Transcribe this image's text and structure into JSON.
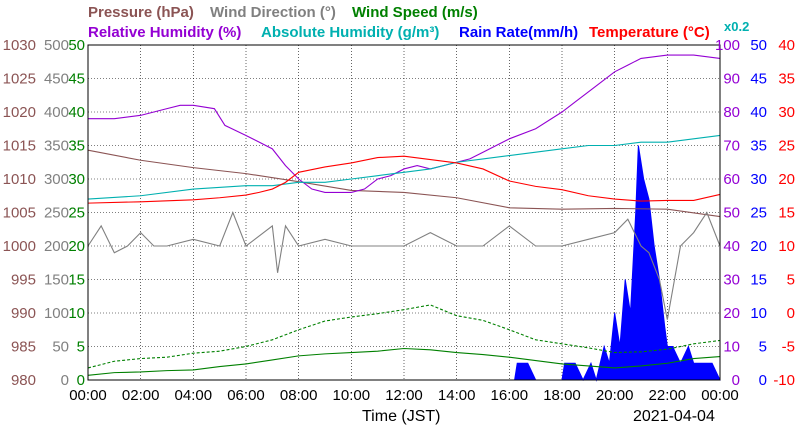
{
  "chart_data": {
    "type": "line",
    "date": "2021-04-04",
    "xlabel": "Time (JST)",
    "x_ticks": [
      "00:00",
      "02:00",
      "04:00",
      "06:00",
      "08:00",
      "10:00",
      "12:00",
      "14:00",
      "16:00",
      "18:00",
      "20:00",
      "22:00",
      "00:00"
    ],
    "grid": true,
    "legend": [
      {
        "label": "Pressure (hPa)",
        "color": "#8b5454"
      },
      {
        "label": "Wind Direction (°)",
        "color": "#808080"
      },
      {
        "label": "Wind Speed (m/s)",
        "color": "#008000"
      },
      {
        "label": "Relative Humidity (%)",
        "color": "#9400d3"
      },
      {
        "label": "Absolute Humidity (g/m³)",
        "color": "#00b0b0"
      },
      {
        "label": "Rain Rate(mm/h)",
        "color": "#0000ff"
      },
      {
        "label": "Temperature (°C)",
        "color": "#ff0000"
      }
    ],
    "abs_humidity_scale_note": "x0.2",
    "axes": {
      "pressure": {
        "color": "#8b5454",
        "ticks": [
          "1030",
          "1025",
          "1020",
          "1015",
          "1010",
          "1005",
          "1000",
          "995",
          "990",
          "985",
          "980"
        ],
        "range": [
          980,
          1030
        ]
      },
      "wind_direction": {
        "color": "#808080",
        "ticks": [
          "500",
          "450",
          "400",
          "350",
          "300",
          "250",
          "200",
          "150",
          "100",
          "50",
          "0"
        ],
        "range": [
          0,
          500
        ]
      },
      "wind_speed": {
        "color": "#008000",
        "ticks": [
          "50",
          "45",
          "40",
          "35",
          "30",
          "25",
          "20",
          "15",
          "10",
          "5",
          "0"
        ],
        "range": [
          0,
          50
        ]
      },
      "humidity": {
        "color": "#9400d3",
        "ticks": [
          "100",
          "90",
          "80",
          "70",
          "60",
          "50",
          "40",
          "30",
          "20",
          "10",
          "0"
        ],
        "range": [
          0,
          100
        ]
      },
      "rain_rate": {
        "color": "#0000ff",
        "ticks": [
          "50",
          "45",
          "40",
          "35",
          "30",
          "25",
          "20",
          "15",
          "10",
          "5",
          "0"
        ],
        "range": [
          0,
          50
        ]
      },
      "temperature": {
        "color": "#ff0000",
        "ticks": [
          "40",
          "35",
          "30",
          "25",
          "20",
          "15",
          "10",
          "5",
          "0",
          "-5",
          "-10"
        ],
        "range": [
          -10,
          40
        ]
      }
    },
    "series": [
      {
        "name": "Pressure (hPa)",
        "color": "#8b5454",
        "axis": "pressure",
        "x": [
          0,
          2,
          4,
          6,
          8,
          10,
          12,
          14,
          16,
          18,
          20,
          22,
          24
        ],
        "y": [
          1014.3,
          1012.8,
          1011.7,
          1010.8,
          1009.6,
          1008.3,
          1008.0,
          1007.2,
          1005.7,
          1005.5,
          1005.6,
          1005.5,
          1004.4
        ]
      },
      {
        "name": "Relative Humidity (%)",
        "color": "#9400d3",
        "axis": "humidity",
        "x": [
          0,
          1,
          2,
          3,
          3.5,
          4,
          4.8,
          5.2,
          6,
          6.5,
          7,
          7.5,
          8,
          8.5,
          9,
          9.5,
          10,
          10.5,
          11,
          11.5,
          12,
          12.5,
          13,
          13.5,
          14,
          14.5,
          15,
          16,
          17,
          18,
          18.5,
          19,
          20,
          20.5,
          21,
          22,
          23,
          24
        ],
        "y": [
          78,
          78,
          79,
          81,
          82,
          82,
          81,
          76,
          73,
          71,
          69,
          64,
          60,
          57,
          56,
          56,
          56,
          57,
          60,
          61,
          63,
          64,
          63,
          64,
          65,
          66,
          68,
          72,
          75,
          80,
          83,
          86,
          92,
          94,
          96,
          97,
          97,
          96
        ]
      },
      {
        "name": "Absolute Humidity (x0.2)",
        "color": "#00b0b0",
        "axis": "humidity",
        "x": [
          0,
          2,
          4,
          6,
          7,
          8,
          9,
          10,
          11,
          12,
          13,
          14,
          15,
          16,
          17,
          18,
          19,
          20,
          21,
          22,
          23,
          24
        ],
        "y": [
          54,
          55,
          57,
          58,
          58,
          59,
          59,
          60,
          61,
          62,
          63,
          65,
          66,
          67,
          68,
          69,
          70,
          70,
          71,
          71,
          72,
          73
        ]
      },
      {
        "name": "Temperature (°C)",
        "color": "#ff0000",
        "axis": "temperature",
        "x": [
          0,
          2,
          4,
          5,
          6,
          6.5,
          7,
          7.5,
          8,
          9,
          10,
          11,
          12,
          13,
          14,
          15,
          16,
          17,
          18,
          19,
          20,
          21,
          22,
          23,
          24
        ],
        "y": [
          16.4,
          16.6,
          16.9,
          17.2,
          17.6,
          18.0,
          18.5,
          19.5,
          21.0,
          21.8,
          22.4,
          23.2,
          23.4,
          22.9,
          22.4,
          21.5,
          19.7,
          18.9,
          18.4,
          17.5,
          17.0,
          16.7,
          16.8,
          16.8,
          17.7
        ]
      },
      {
        "name": "Wind Direction (°)",
        "color": "#808080",
        "axis": "wind_direction",
        "x": [
          0,
          0.5,
          1,
          1.5,
          2,
          2.5,
          3,
          4,
          5,
          5.5,
          6,
          7,
          7.2,
          7.5,
          8,
          9,
          10,
          11,
          12,
          13,
          14,
          15,
          16,
          17,
          18,
          19,
          20,
          20.5,
          21,
          21.3,
          21.7,
          22,
          22.5,
          23,
          23.5,
          24
        ],
        "y": [
          200,
          230,
          190,
          200,
          220,
          200,
          200,
          210,
          200,
          250,
          200,
          230,
          160,
          230,
          200,
          210,
          200,
          200,
          200,
          220,
          200,
          200,
          230,
          200,
          200,
          210,
          220,
          240,
          200,
          190,
          150,
          90,
          200,
          220,
          250,
          200
        ]
      },
      {
        "name": "Wind Speed (m/s)",
        "color": "#008000",
        "axis": "wind_speed",
        "x": [
          0,
          1,
          2,
          3,
          4,
          5,
          6,
          7,
          8,
          9,
          10,
          11,
          12,
          13,
          14,
          15,
          16,
          17,
          18,
          19,
          20,
          21,
          22,
          23,
          24
        ],
        "y": [
          0.7,
          1.1,
          1.2,
          1.4,
          1.5,
          2.0,
          2.4,
          3.0,
          3.6,
          3.9,
          4.1,
          4.3,
          4.7,
          4.5,
          4.1,
          3.8,
          3.4,
          2.9,
          2.4,
          2.1,
          1.8,
          2.1,
          2.5,
          3.2,
          3.5
        ]
      },
      {
        "name": "Wind Speed Gust (m/s)",
        "color": "#008000",
        "axis": "wind_speed",
        "x": [
          0,
          1,
          2,
          3,
          4,
          5,
          6,
          7,
          8,
          9,
          10,
          11,
          12,
          13,
          14,
          15,
          16,
          17,
          18,
          19,
          20,
          21,
          22,
          23,
          24
        ],
        "y": [
          1.8,
          2.8,
          3.2,
          3.4,
          4.0,
          4.3,
          5.0,
          6.0,
          7.5,
          8.8,
          9.4,
          9.9,
          10.5,
          11.2,
          9.6,
          8.9,
          7.5,
          6.0,
          5.4,
          4.8,
          4.1,
          4.2,
          4.6,
          5.4,
          5.9
        ]
      }
    ],
    "rain": {
      "color": "#0000ff",
      "x": [
        0,
        16.2,
        16.3,
        16.7,
        17,
        18,
        18.1,
        18.5,
        18.8,
        19.1,
        19.3,
        19.6,
        19.8,
        20,
        20.2,
        20.4,
        20.6,
        20.8,
        20.9,
        21.1,
        21.3,
        21.5,
        21.7,
        21.9,
        22,
        22.2,
        22.5,
        22.8,
        23,
        23.3,
        23.7,
        24
      ],
      "y": [
        0,
        0,
        2.5,
        2.5,
        0,
        0,
        2.5,
        2.5,
        0,
        2.5,
        0,
        5,
        2.5,
        10,
        5,
        15,
        10,
        25,
        35,
        30,
        27,
        20,
        15,
        8,
        5,
        5,
        2.5,
        5,
        2.5,
        2.5,
        2.5,
        0
      ]
    }
  },
  "labels": {
    "pressure": "Pressure (hPa)",
    "wind_direction": "Wind Direction (°)",
    "wind_speed": "Wind Speed (m/s)",
    "rel_humidity": "Relative Humidity (%)",
    "abs_humidity": "Absolute Humidity (g/m³)",
    "rain_rate": "Rain Rate(mm/h)",
    "temperature": "Temperature (°C)",
    "scale_note": "x0.2",
    "xlabel": "Time (JST)",
    "date": "2021-04-04"
  }
}
